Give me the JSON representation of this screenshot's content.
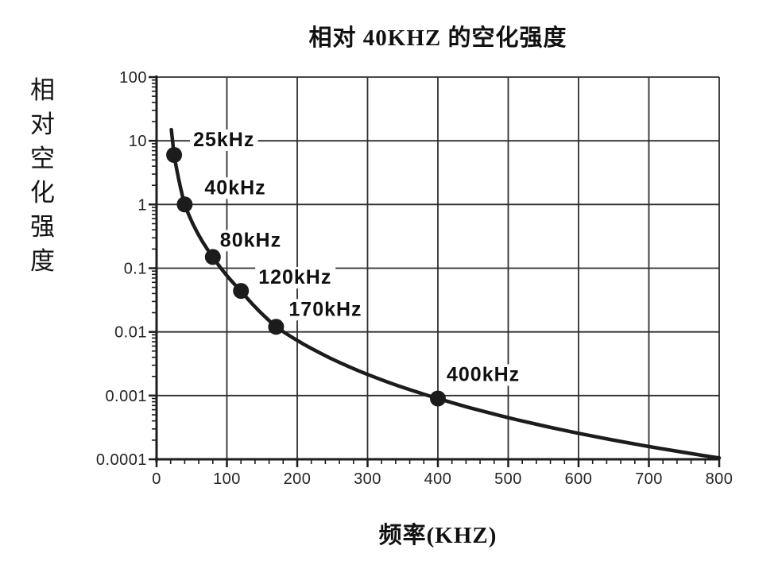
{
  "chart_data": {
    "type": "line",
    "title": "相对 40KHZ 的空化强度",
    "xlabel": "频率(KHZ)",
    "ylabel": "相对空化强度",
    "x_axis": {
      "min": 0,
      "max": 800,
      "tick_labels": [
        "0",
        "100",
        "200",
        "300",
        "400",
        "500",
        "600",
        "700",
        "800"
      ],
      "minor_tick_step": 20
    },
    "y_axis": {
      "scale": "log",
      "min": 0.0001,
      "max": 100,
      "tick_labels": [
        "100",
        "10",
        "1",
        "0.1",
        "0.01",
        "0.001",
        "0.0001"
      ]
    },
    "grid": "major-both",
    "legend": "none",
    "series": [
      {
        "name": "relative-cavitation-intensity",
        "points": [
          {
            "label": "25kHz",
            "x": 25,
            "y": 6
          },
          {
            "label": "40kHz",
            "x": 40,
            "y": 1
          },
          {
            "label": "80kHz",
            "x": 80,
            "y": 0.15
          },
          {
            "label": "120kHz",
            "x": 120,
            "y": 0.044
          },
          {
            "label": "170kHz",
            "x": 170,
            "y": 0.012
          },
          {
            "label": "400kHz",
            "x": 400,
            "y": 0.0009
          }
        ],
        "curve": [
          [
            21,
            15
          ],
          [
            25,
            6
          ],
          [
            40,
            1
          ],
          [
            80,
            0.15
          ],
          [
            120,
            0.044
          ],
          [
            170,
            0.012
          ],
          [
            400,
            0.0009
          ],
          [
            800,
            0.000105
          ]
        ]
      }
    ]
  },
  "colors": {
    "ink": "#1c1c1c",
    "grid": "#2e2e2e",
    "background": "#ffffff"
  }
}
